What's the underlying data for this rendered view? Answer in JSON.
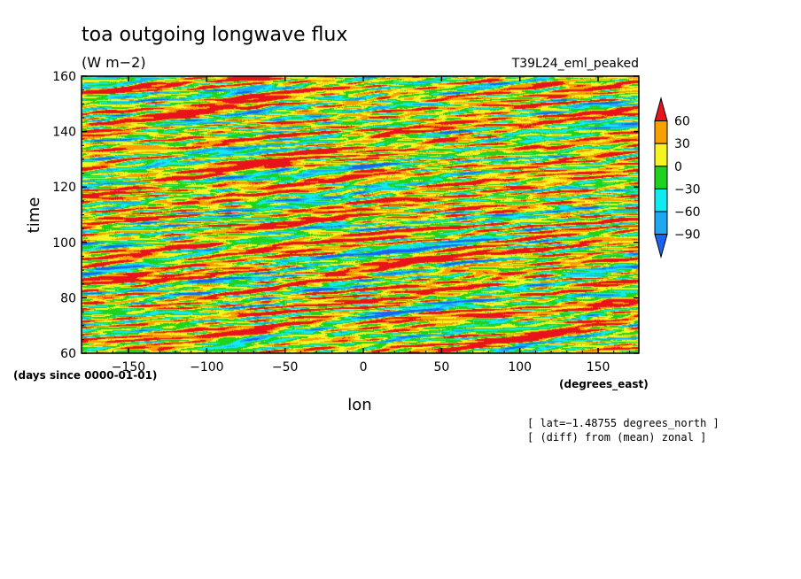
{
  "chart_data": {
    "type": "heatmap",
    "title": "toa outgoing longwave flux",
    "units": "(W m−2)",
    "case_label": "T39L24_eml_peaked",
    "xlabel": "lon",
    "ylabel": "time",
    "x_units": "(degrees_east)",
    "y_units": "(days since 0000-01-01)",
    "xlim": [
      -180,
      176
    ],
    "ylim": [
      60,
      160
    ],
    "x_ticks": [
      -150,
      -100,
      -50,
      0,
      50,
      100,
      150
    ],
    "y_ticks": [
      60,
      80,
      100,
      120,
      140,
      160
    ],
    "notes": [
      "[ lat=−1.48755 degrees_north ]",
      "[ (diff) from (mean) zonal ]"
    ],
    "colorbar": {
      "labels": [
        60,
        30,
        0,
        -30,
        -60,
        -90
      ],
      "bins": [
        {
          "range": [
            60,
            null
          ],
          "color": "#e8141c"
        },
        {
          "range": [
            30,
            60
          ],
          "color": "#f7a100"
        },
        {
          "range": [
            0,
            30
          ],
          "color": "#f4f422"
        },
        {
          "range": [
            -30,
            0
          ],
          "color": "#1ed21e"
        },
        {
          "range": [
            -60,
            -30
          ],
          "color": "#11eaf0"
        },
        {
          "range": [
            -90,
            -60
          ],
          "color": "#1fa8f2"
        },
        {
          "range": [
            null,
            -90
          ],
          "color": "#1a64f0"
        }
      ]
    },
    "grid": false,
    "field_description": "Hovmoller of zonal-mean-removed outgoing longwave flux; eastward-propagating anomalies tilted across longitude over days 60-160"
  }
}
